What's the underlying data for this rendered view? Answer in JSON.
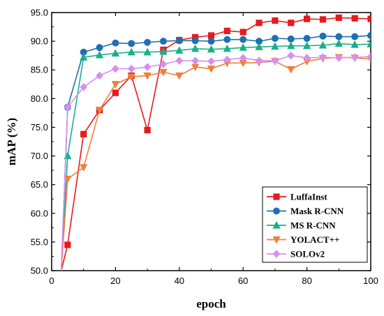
{
  "chart_data": {
    "type": "line",
    "title": "",
    "xlabel": "epoch",
    "ylabel": "mAP (%)",
    "xlim": [
      0,
      100
    ],
    "ylim": [
      50,
      95
    ],
    "xticks": [
      0,
      20,
      40,
      60,
      80,
      100
    ],
    "yticks": [
      50.0,
      55.0,
      60.0,
      65.0,
      70.0,
      75.0,
      80.0,
      85.0,
      90.0,
      95.0
    ],
    "grid": false,
    "legend_position": "bottom-right",
    "x": [
      3,
      5,
      10,
      15,
      20,
      25,
      30,
      35,
      40,
      45,
      50,
      55,
      60,
      65,
      70,
      75,
      80,
      85,
      90,
      95,
      100
    ],
    "series": [
      {
        "name": "LuffaInst",
        "color": "#e8191b",
        "marker": "square",
        "values": [
          50.0,
          54.5,
          73.8,
          78.0,
          81.0,
          84.0,
          74.5,
          88.5,
          90.2,
          90.7,
          91.0,
          91.8,
          91.6,
          93.2,
          93.6,
          93.2,
          93.9,
          93.8,
          94.1,
          94.0,
          93.9
        ]
      },
      {
        "name": "Mask R-CNN",
        "color": "#1f6fb4",
        "marker": "circle",
        "values": [
          50.0,
          78.5,
          88.1,
          88.9,
          89.7,
          89.6,
          89.8,
          90.0,
          90.1,
          90.1,
          90.0,
          90.3,
          90.3,
          90.0,
          90.5,
          90.4,
          90.5,
          90.9,
          90.8,
          90.8,
          91.0
        ]
      },
      {
        "name": "MS R-CNN",
        "color": "#17b08a",
        "marker": "triangle",
        "values": [
          50.0,
          70.0,
          87.2,
          87.6,
          87.9,
          88.1,
          88.1,
          88.2,
          88.4,
          88.7,
          88.6,
          88.7,
          88.9,
          89.0,
          89.1,
          89.2,
          89.2,
          89.3,
          89.6,
          89.4,
          89.5
        ]
      },
      {
        "name": "YOLACT++",
        "color": "#f07f3c",
        "marker": "triangle-down",
        "values": [
          50.0,
          66.0,
          68.0,
          78.0,
          82.5,
          83.8,
          84.0,
          84.6,
          84.0,
          85.5,
          85.2,
          86.2,
          86.2,
          86.3,
          86.5,
          85.1,
          86.5,
          87.0,
          87.2,
          87.1,
          86.9
        ]
      },
      {
        "name": "SOLOv2",
        "color": "#d68ff0",
        "marker": "diamond",
        "values": [
          50.0,
          78.5,
          82.0,
          84.0,
          85.2,
          85.2,
          85.5,
          86.0,
          86.6,
          86.6,
          86.5,
          86.8,
          87.1,
          86.6,
          86.6,
          87.5,
          87.1,
          87.2,
          87.1,
          87.2,
          87.3
        ]
      }
    ]
  }
}
